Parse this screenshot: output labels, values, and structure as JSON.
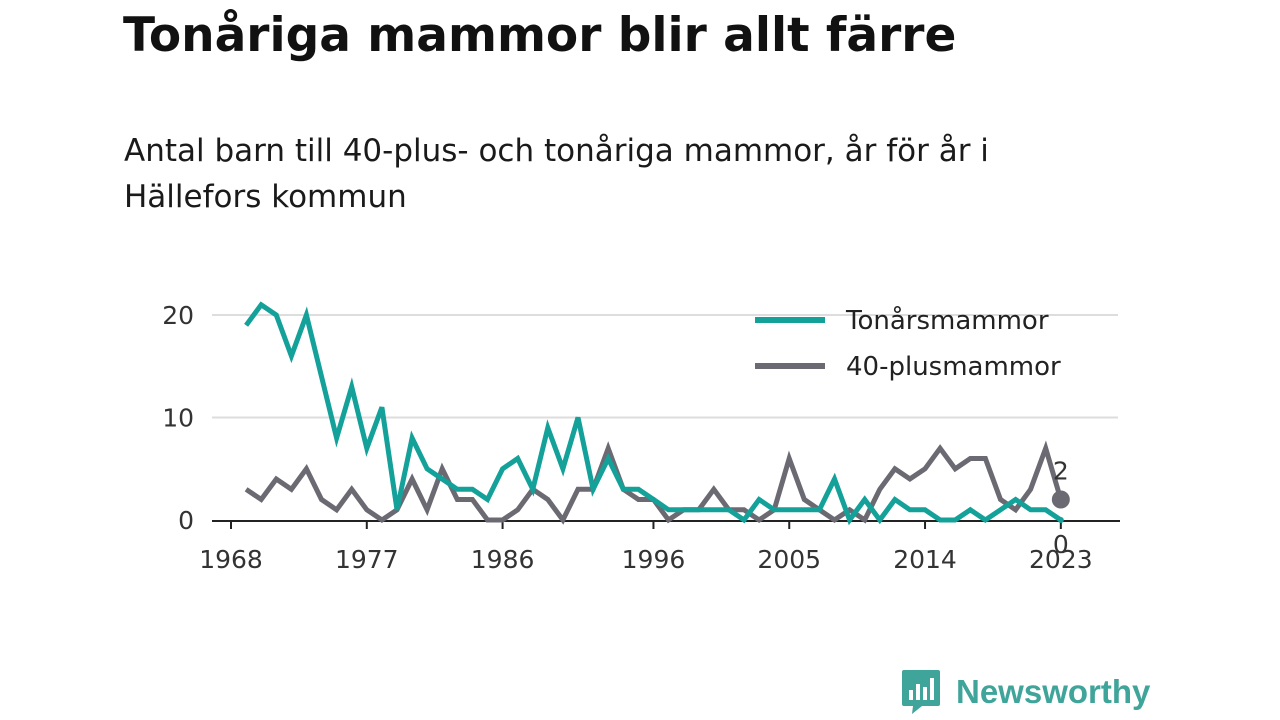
{
  "title": "Tonåriga mammor blir allt färre",
  "subtitle": "Antal barn till 40-plus- och tonåriga mammor, år för år i Hällefors kommun",
  "brand": {
    "name": "Newsworthy",
    "color": "#3fa49a"
  },
  "chart_data": {
    "type": "line",
    "title": "Tonåriga mammor blir allt färre",
    "subtitle": "Antal barn till 40-plus- och tonåriga mammor, år för år i Hällefors kommun",
    "xlabel": "",
    "ylabel": "",
    "x": [
      1969,
      1970,
      1971,
      1972,
      1973,
      1974,
      1975,
      1976,
      1977,
      1978,
      1979,
      1980,
      1981,
      1982,
      1983,
      1984,
      1985,
      1986,
      1987,
      1988,
      1989,
      1990,
      1991,
      1992,
      1993,
      1994,
      1995,
      1996,
      1997,
      1998,
      1999,
      2000,
      2001,
      2002,
      2003,
      2004,
      2005,
      2006,
      2007,
      2008,
      2009,
      2010,
      2011,
      2012,
      2013,
      2014,
      2015,
      2016,
      2017,
      2018,
      2019,
      2020,
      2021,
      2022,
      2023
    ],
    "xticks": [
      1968,
      1977,
      1986,
      1996,
      2005,
      2014,
      2023
    ],
    "xlim": [
      1968,
      2025
    ],
    "ylim": [
      0,
      22
    ],
    "yticks": [
      0,
      10,
      20
    ],
    "grid": true,
    "legend_position": "top-right",
    "series": [
      {
        "name": "Tonårsmammor",
        "color": "#13a19a",
        "values": [
          19,
          21,
          20,
          16,
          20,
          14,
          8,
          13,
          7,
          11,
          1,
          8,
          5,
          4,
          3,
          3,
          2,
          5,
          6,
          3,
          9,
          5,
          10,
          3,
          6,
          3,
          3,
          2,
          1,
          1,
          1,
          1,
          1,
          0,
          2,
          1,
          1,
          1,
          1,
          4,
          0,
          2,
          0,
          2,
          1,
          1,
          0,
          0,
          1,
          0,
          1,
          2,
          1,
          1,
          0
        ],
        "end_label": "0"
      },
      {
        "name": "40-plusmammor",
        "color": "#6b6a72",
        "values": [
          3,
          2,
          4,
          3,
          5,
          2,
          1,
          3,
          1,
          0,
          1,
          4,
          1,
          5,
          2,
          2,
          0,
          0,
          1,
          3,
          2,
          0,
          3,
          3,
          7,
          3,
          2,
          2,
          0,
          1,
          1,
          3,
          1,
          1,
          0,
          1,
          6,
          2,
          1,
          0,
          1,
          0,
          3,
          5,
          4,
          5,
          7,
          5,
          6,
          6,
          2,
          1,
          3,
          7,
          2
        ],
        "end_label": "2"
      }
    ]
  }
}
